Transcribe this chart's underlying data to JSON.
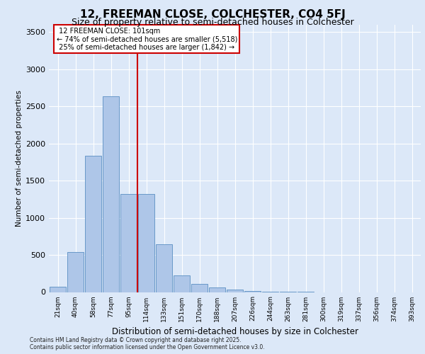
{
  "title_line1": "12, FREEMAN CLOSE, COLCHESTER, CO4 5FJ",
  "title_line2": "Size of property relative to semi-detached houses in Colchester",
  "xlabel": "Distribution of semi-detached houses by size in Colchester",
  "ylabel": "Number of semi-detached properties",
  "footnote": "Contains HM Land Registry data © Crown copyright and database right 2025.\nContains public sector information licensed under the Open Government Licence v3.0.",
  "bin_labels": [
    "21sqm",
    "40sqm",
    "58sqm",
    "77sqm",
    "95sqm",
    "114sqm",
    "133sqm",
    "151sqm",
    "170sqm",
    "188sqm",
    "207sqm",
    "226sqm",
    "244sqm",
    "263sqm",
    "281sqm",
    "300sqm",
    "319sqm",
    "337sqm",
    "356sqm",
    "374sqm",
    "393sqm"
  ],
  "bar_values": [
    75,
    540,
    1840,
    2640,
    1320,
    1320,
    640,
    220,
    105,
    60,
    30,
    10,
    5,
    2,
    1,
    0,
    0,
    0,
    0,
    0,
    0
  ],
  "bar_color": "#aec6e8",
  "bar_edgecolor": "#5a8fc2",
  "property_line_x": 4.5,
  "property_value": 101,
  "property_label": "12 FREEMAN CLOSE: 101sqm",
  "pct_smaller": 74,
  "pct_smaller_count": 5518,
  "pct_larger": 25,
  "pct_larger_count": 1842,
  "vline_color": "#cc0000",
  "annotation_box_color": "#cc0000",
  "ylim": [
    0,
    3600
  ],
  "yticks": [
    0,
    500,
    1000,
    1500,
    2000,
    2500,
    3000,
    3500
  ],
  "background_color": "#dce8f8",
  "grid_color": "#ffffff",
  "title_fontsize": 11,
  "subtitle_fontsize": 9,
  "ylabel_fontsize": 7.5,
  "xlabel_fontsize": 8.5,
  "tick_fontsize": 6.5,
  "annotation_fontsize": 7.0,
  "footnote_fontsize": 5.5
}
